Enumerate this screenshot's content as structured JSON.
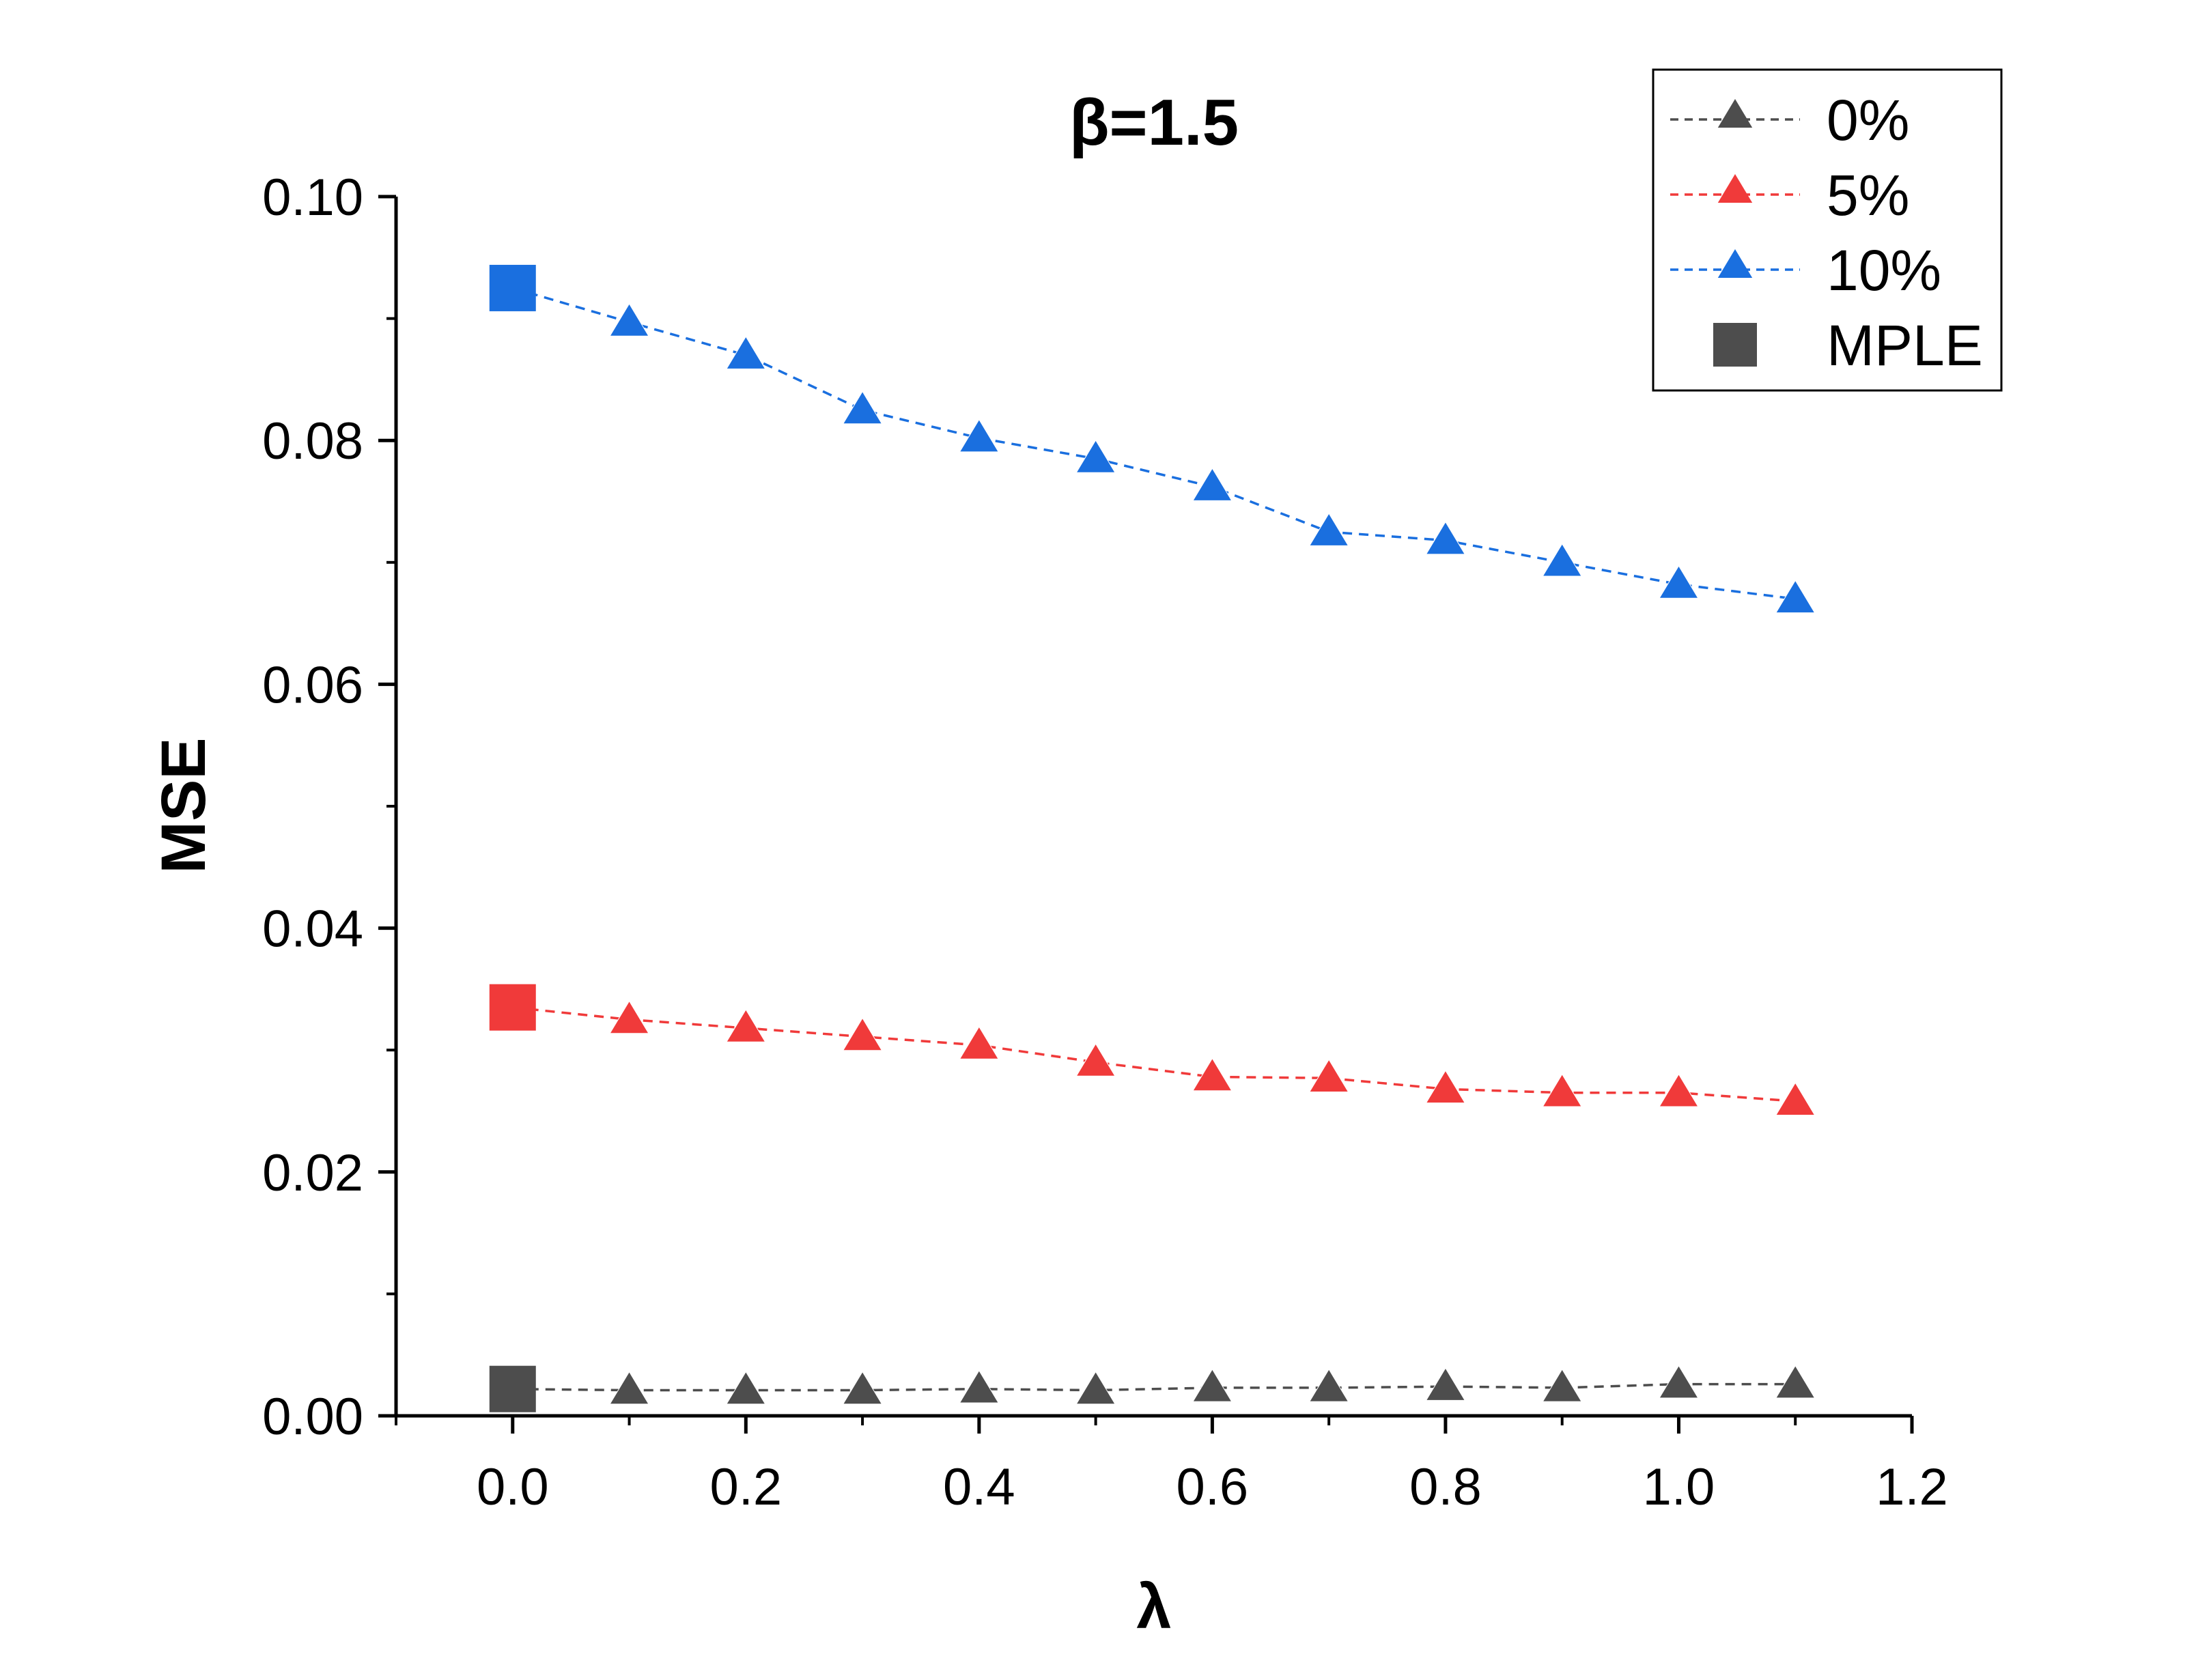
{
  "chart_data": {
    "type": "line",
    "title": "β=1.5",
    "xlabel": "λ",
    "ylabel": "MSE",
    "xlim": [
      -0.1,
      1.2
    ],
    "ylim": [
      0.0,
      0.1
    ],
    "xticks": [
      0.0,
      0.2,
      0.4,
      0.6,
      0.8,
      1.0,
      1.2
    ],
    "xtick_labels": [
      "0.0",
      "0.2",
      "0.4",
      "0.6",
      "0.8",
      "1.0",
      "1.2"
    ],
    "yticks": [
      0.0,
      0.02,
      0.04,
      0.06,
      0.08,
      0.1
    ],
    "ytick_labels": [
      "0.00",
      "0.02",
      "0.04",
      "0.06",
      "0.08",
      "0.10"
    ],
    "legend_position": "top-right",
    "x": [
      0.1,
      0.2,
      0.3,
      0.4,
      0.5,
      0.6,
      0.7,
      0.8,
      0.9,
      1.0,
      1.1
    ],
    "series": [
      {
        "name": "0%",
        "color": "#4d4d4d",
        "marker": "triangle",
        "line_style": "dashed",
        "values": [
          0.0021,
          0.0021,
          0.0021,
          0.0022,
          0.0021,
          0.0023,
          0.0023,
          0.0024,
          0.0023,
          0.0026,
          0.0026
        ]
      },
      {
        "name": "5%",
        "color": "#f03a3a",
        "marker": "triangle",
        "line_style": "dashed",
        "values": [
          0.0325,
          0.0318,
          0.0311,
          0.0304,
          0.029,
          0.0278,
          0.0277,
          0.0268,
          0.0265,
          0.0265,
          0.0258
        ]
      },
      {
        "name": "10%",
        "color": "#1a6fdf",
        "marker": "triangle",
        "line_style": "dashed",
        "values": [
          0.0897,
          0.087,
          0.0825,
          0.0802,
          0.0785,
          0.0762,
          0.0725,
          0.0718,
          0.07,
          0.0682,
          0.067
        ]
      }
    ],
    "mple": {
      "name": "MPLE",
      "legend_color": "#4d4d4d",
      "marker": "square",
      "x": 0.0,
      "values": [
        0.0022,
        0.0335,
        0.0925
      ],
      "colors": [
        "#4d4d4d",
        "#f03a3a",
        "#1a6fdf"
      ]
    }
  }
}
